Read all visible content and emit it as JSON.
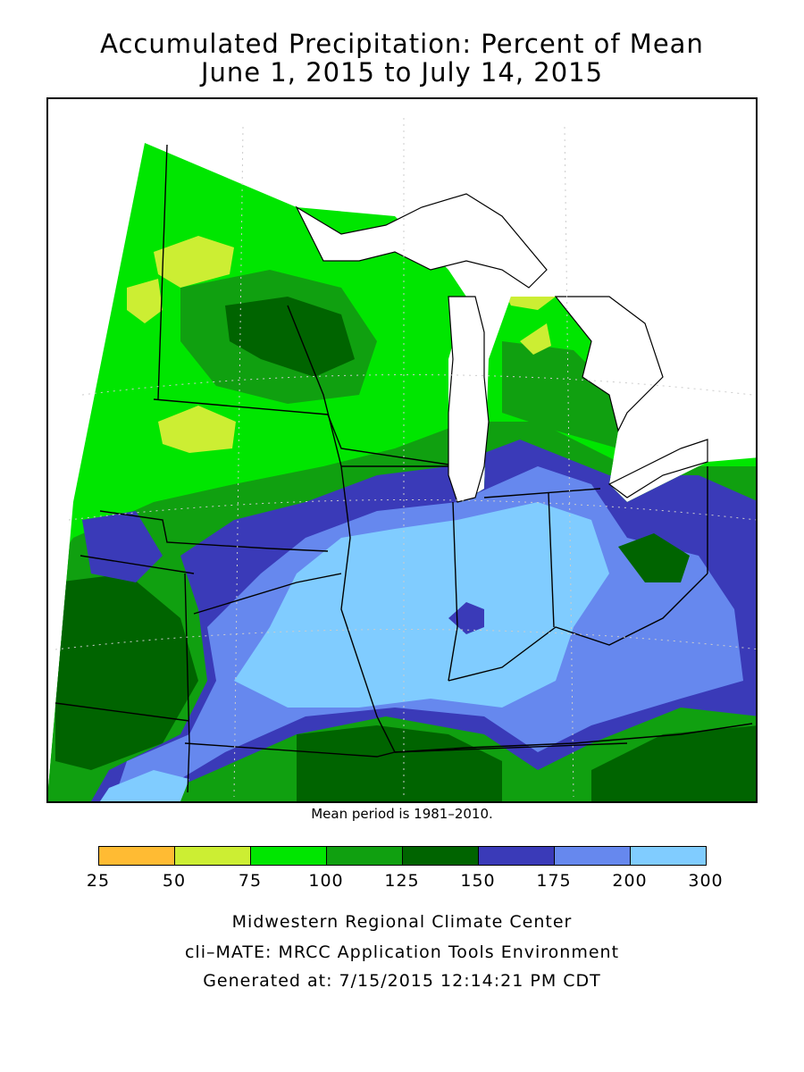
{
  "title": {
    "line1": "Accumulated Precipitation: Percent of Mean",
    "line2": "June 1, 2015 to July 14, 2015"
  },
  "map": {
    "region": "Midwest United States",
    "colors": {
      "ocean": "#ffffff",
      "class_25_50": "#ffbb33",
      "class_50_75": "#ccee33",
      "class_75_100": "#00e600",
      "class_100_125": "#10a010",
      "class_125_150": "#006400",
      "class_150_175": "#3a3ab8",
      "class_175_200": "#6688ee",
      "class_200_300": "#80ccff"
    }
  },
  "note": "Mean period is 1981–2010.",
  "legend": {
    "ticks": [
      "25",
      "50",
      "75",
      "100",
      "125",
      "150",
      "175",
      "200",
      "300"
    ],
    "colors": [
      "#ffbb33",
      "#ccee33",
      "#00e600",
      "#10a010",
      "#006400",
      "#3a3ab8",
      "#6688ee",
      "#80ccff"
    ]
  },
  "footer": {
    "org": "Midwestern Regional Climate Center",
    "app": "cli–MATE: MRCC Application Tools Environment",
    "generated": "Generated at: 7/15/2015 12:14:21 PM CDT"
  }
}
